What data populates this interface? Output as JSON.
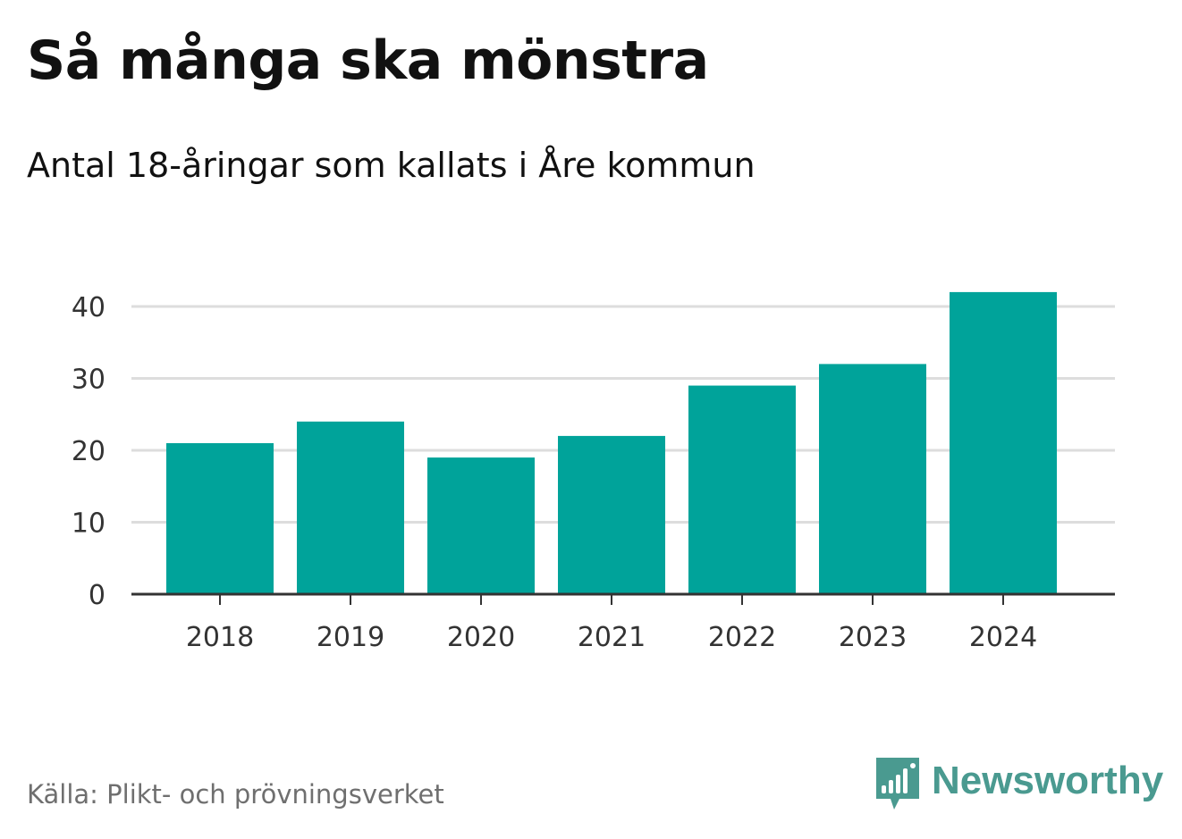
{
  "title": "Så många ska mönstra",
  "subtitle": "Antal 18-åringar som kallats i Åre kommun",
  "source": "Källa: Plikt- och prövningsverket",
  "brand": {
    "name": "Newsworthy",
    "icon": "newsworthy-logo-icon",
    "color": "#4a9a90"
  },
  "colors": {
    "bar": "#00a39a",
    "grid": "#dddddd",
    "axis": "#333333"
  },
  "chart_data": {
    "type": "bar",
    "title": "Så många ska mönstra",
    "subtitle": "Antal 18-åringar som kallats i Åre kommun",
    "categories": [
      "2018",
      "2019",
      "2020",
      "2021",
      "2022",
      "2023",
      "2024"
    ],
    "values": [
      21,
      24,
      19,
      22,
      29,
      32,
      42
    ],
    "xlabel": "",
    "ylabel": "",
    "ylim": [
      0,
      40
    ],
    "yticks": [
      "0",
      "10",
      "20",
      "30",
      "40"
    ],
    "grid": true,
    "legend": "none"
  }
}
